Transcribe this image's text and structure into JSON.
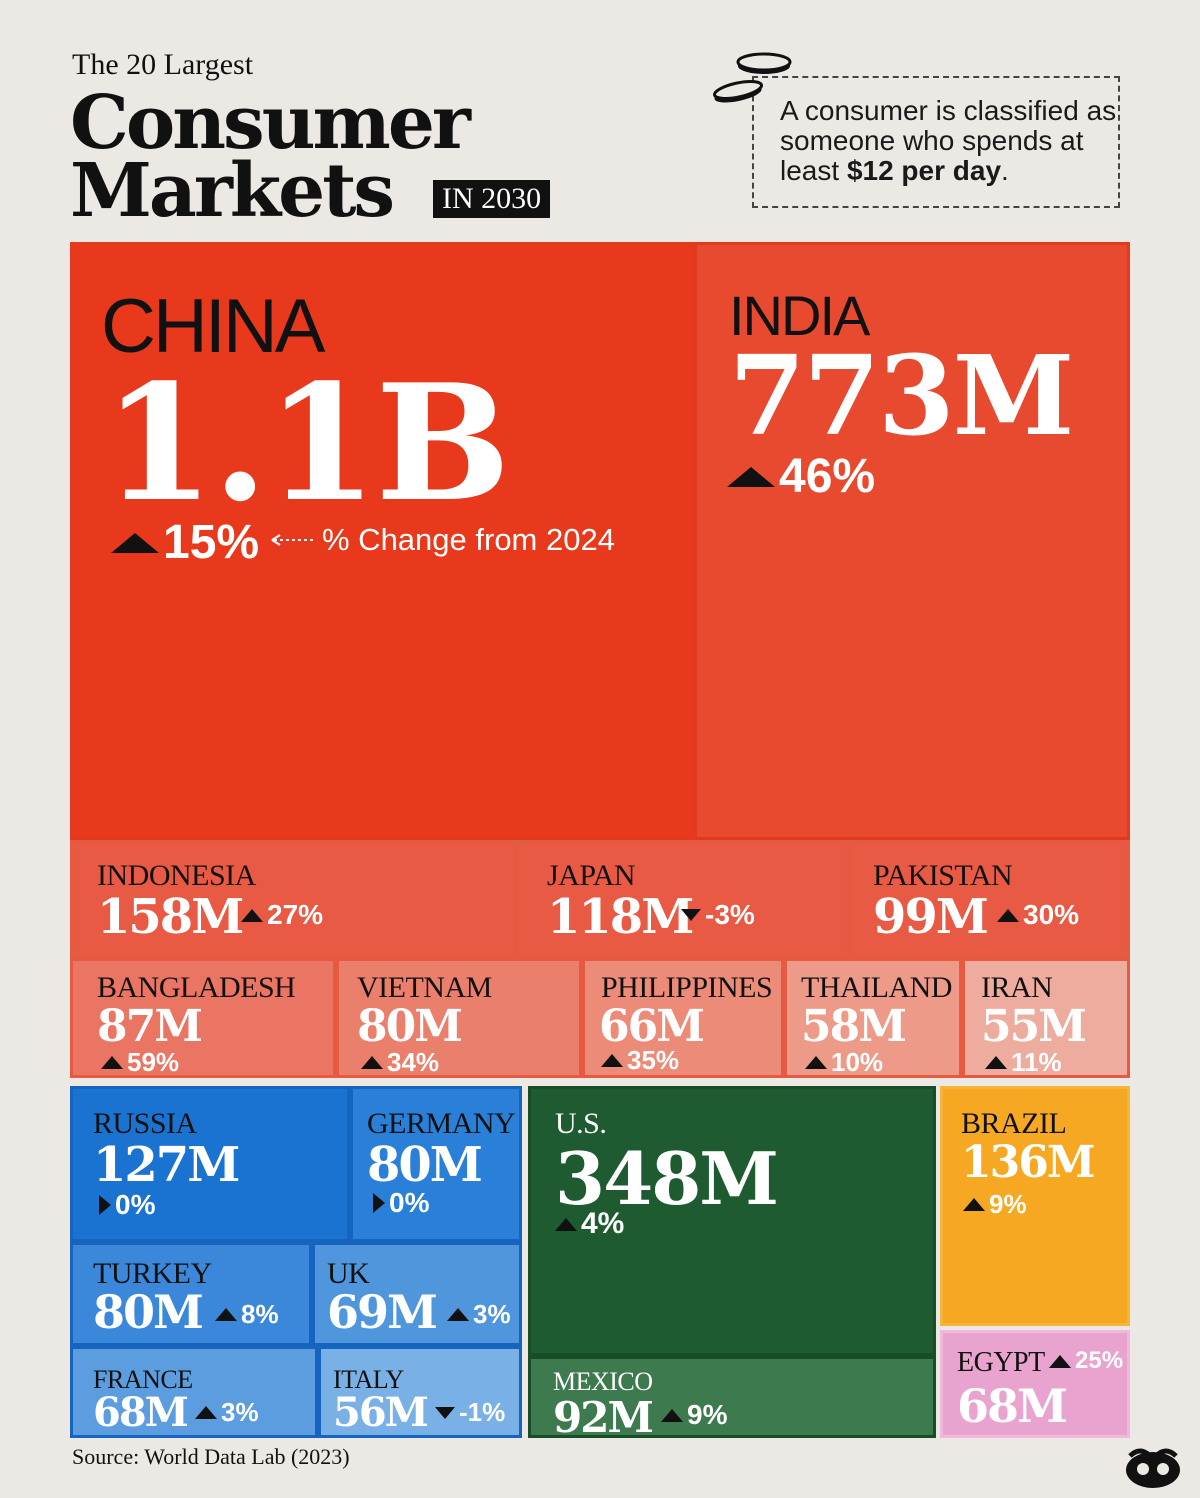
{
  "header": {
    "pretitle": "The 20 Largest",
    "title_line1": "Consumer",
    "title_line2": "Markets",
    "year_badge": "IN 2030"
  },
  "note": {
    "text_before": "A consumer is classified as someone who spends at least ",
    "text_bold": "$12 per day",
    "text_after": "."
  },
  "annotation": "% Change from 2024",
  "source": "Source: World Data Lab (2023)",
  "colors": {
    "asia_dark": "#e8391c",
    "asia_mid": "#e85a44",
    "asia_light": "#ec8b78",
    "europe_dark": "#1a73d1",
    "europe_mid": "#4a90db",
    "europe_light": "#6fa8e2",
    "north_america_dark": "#1e5b31",
    "north_america_light": "#3d7a4e",
    "brazil": "#f7a823",
    "egypt": "#e9a3cf",
    "background": "#ece9e5"
  },
  "tiles": [
    {
      "name": "CHINA",
      "value": "1.1B",
      "change": "15%",
      "direction": "up"
    },
    {
      "name": "INDIA",
      "value": "773M",
      "change": "46%",
      "direction": "up"
    },
    {
      "name": "INDONESIA",
      "value": "158M",
      "change": "27%",
      "direction": "up"
    },
    {
      "name": "JAPAN",
      "value": "118M",
      "change": "-3%",
      "direction": "down"
    },
    {
      "name": "PAKISTAN",
      "value": "99M",
      "change": "30%",
      "direction": "up"
    },
    {
      "name": "BANGLADESH",
      "value": "87M",
      "change": "59%",
      "direction": "up"
    },
    {
      "name": "VIETNAM",
      "value": "80M",
      "change": "34%",
      "direction": "up"
    },
    {
      "name": "PHILIPPINES",
      "value": "66M",
      "change": "35%",
      "direction": "up"
    },
    {
      "name": "THAILAND",
      "value": "58M",
      "change": "10%",
      "direction": "up"
    },
    {
      "name": "IRAN",
      "value": "55M",
      "change": "11%",
      "direction": "up"
    },
    {
      "name": "RUSSIA",
      "value": "127M",
      "change": "0%",
      "direction": "flat"
    },
    {
      "name": "GERMANY",
      "value": "80M",
      "change": "0%",
      "direction": "flat"
    },
    {
      "name": "TURKEY",
      "value": "80M",
      "change": "8%",
      "direction": "up"
    },
    {
      "name": "UK",
      "value": "69M",
      "change": "3%",
      "direction": "up"
    },
    {
      "name": "FRANCE",
      "value": "68M",
      "change": "3%",
      "direction": "up"
    },
    {
      "name": "ITALY",
      "value": "56M",
      "change": "-1%",
      "direction": "down"
    },
    {
      "name": "U.S.",
      "value": "348M",
      "change": "4%",
      "direction": "up"
    },
    {
      "name": "MEXICO",
      "value": "92M",
      "change": "9%",
      "direction": "up"
    },
    {
      "name": "BRAZIL",
      "value": "136M",
      "change": "9%",
      "direction": "up"
    },
    {
      "name": "EGYPT",
      "value": "68M",
      "change": "25%",
      "direction": "up"
    }
  ],
  "chart_data": {
    "type": "treemap",
    "title": "The 20 Largest Consumer Markets IN 2030",
    "value_unit": "consumers",
    "series": [
      {
        "name": "CHINA",
        "value": 1100,
        "change_pct": 15
      },
      {
        "name": "INDIA",
        "value": 773,
        "change_pct": 46
      },
      {
        "name": "INDONESIA",
        "value": 158,
        "change_pct": 27
      },
      {
        "name": "JAPAN",
        "value": 118,
        "change_pct": -3
      },
      {
        "name": "PAKISTAN",
        "value": 99,
        "change_pct": 30
      },
      {
        "name": "BANGLADESH",
        "value": 87,
        "change_pct": 59
      },
      {
        "name": "VIETNAM",
        "value": 80,
        "change_pct": 34
      },
      {
        "name": "PHILIPPINES",
        "value": 66,
        "change_pct": 35
      },
      {
        "name": "THAILAND",
        "value": 58,
        "change_pct": 10
      },
      {
        "name": "IRAN",
        "value": 55,
        "change_pct": 11
      },
      {
        "name": "RUSSIA",
        "value": 127,
        "change_pct": 0
      },
      {
        "name": "GERMANY",
        "value": 80,
        "change_pct": 0
      },
      {
        "name": "TURKEY",
        "value": 80,
        "change_pct": 8
      },
      {
        "name": "UK",
        "value": 69,
        "change_pct": 3
      },
      {
        "name": "FRANCE",
        "value": 68,
        "change_pct": 3
      },
      {
        "name": "ITALY",
        "value": 56,
        "change_pct": -1
      },
      {
        "name": "U.S.",
        "value": 348,
        "change_pct": 4
      },
      {
        "name": "MEXICO",
        "value": 92,
        "change_pct": 9
      },
      {
        "name": "BRAZIL",
        "value": 136,
        "change_pct": 9
      },
      {
        "name": "EGYPT",
        "value": 68,
        "change_pct": 25
      }
    ]
  }
}
